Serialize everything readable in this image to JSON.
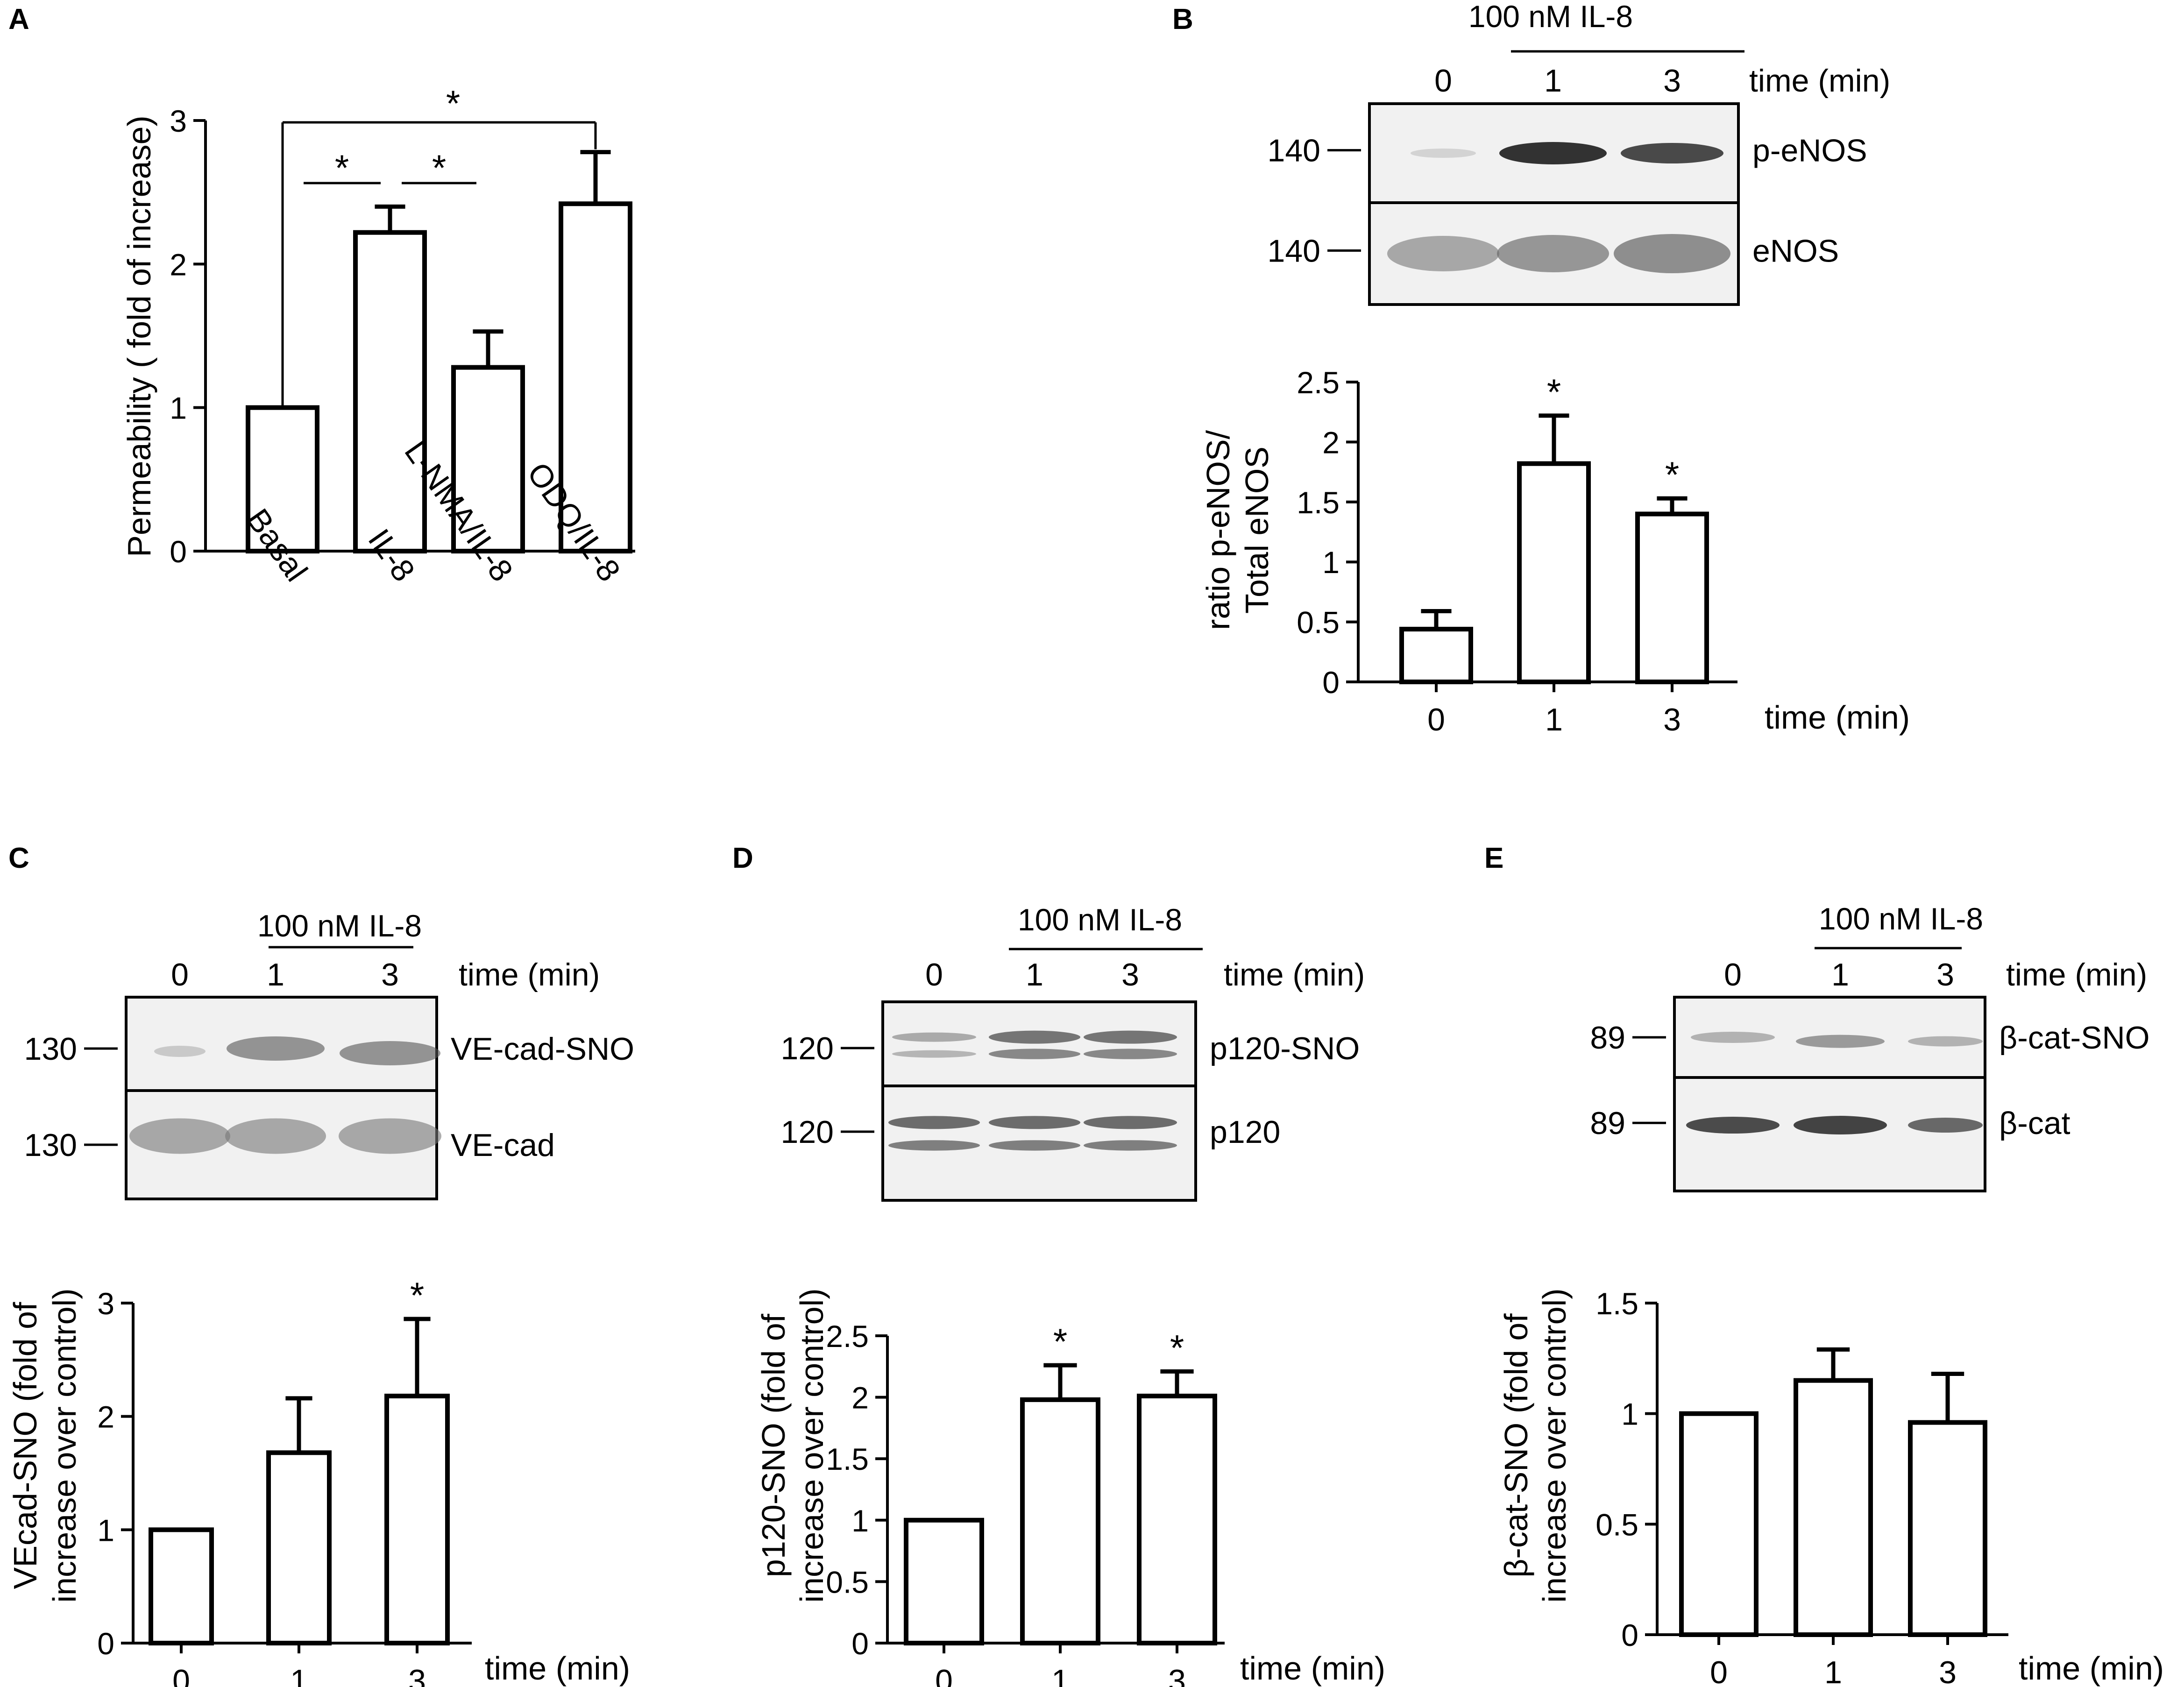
{
  "panels": {
    "A": {
      "letter": "A",
      "ylabel": "Permeability ( fold of increase)",
      "ticks": [
        "0",
        "1",
        "2",
        "3"
      ],
      "cats": [
        "Basal",
        "IL-8",
        "L-NMA/IL-8",
        "ODQ/IL-8"
      ],
      "stars": [
        "*",
        "*",
        "*"
      ]
    },
    "B": {
      "letter": "B",
      "treatment": "100 nM IL-8",
      "lanes": [
        "0",
        "1",
        "3"
      ],
      "time_label": "time (min)",
      "mw": [
        "140",
        "140"
      ],
      "bands": [
        "p-eNOS",
        "eNOS"
      ],
      "ylabel_1": "ratio p-eNOS/",
      "ylabel_2": "Total eNOS",
      "ticks": [
        "0",
        "0.5",
        "1",
        "1.5",
        "2",
        "2.5"
      ],
      "cats": [
        "0",
        "1",
        "3"
      ],
      "stars": [
        "*",
        "*"
      ]
    },
    "C": {
      "letter": "C",
      "treatment": "100 nM IL-8",
      "lanes": [
        "0",
        "1",
        "3"
      ],
      "time_label": "time (min)",
      "mw": [
        "130",
        "130"
      ],
      "bands": [
        "VE-cad-SNO",
        "VE-cad"
      ],
      "ylabel_1": "VEcad-SNO (fold of",
      "ylabel_2": "increase over control)",
      "ticks": [
        "0",
        "1",
        "2",
        "3"
      ],
      "cats": [
        "0",
        "1",
        "3"
      ],
      "stars": [
        "*"
      ]
    },
    "D": {
      "letter": "D",
      "treatment": "100 nM IL-8",
      "lanes": [
        "0",
        "1",
        "3"
      ],
      "time_label": "time (min)",
      "mw": [
        "120",
        "120"
      ],
      "bands": [
        "p120-SNO",
        "p120"
      ],
      "ylabel_1": "p120-SNO (fold of",
      "ylabel_2": "increase over control)",
      "ticks": [
        "0",
        "0.5",
        "1",
        "1.5",
        "2",
        "2.5"
      ],
      "cats": [
        "0",
        "1",
        "3"
      ],
      "stars": [
        "*",
        "*"
      ]
    },
    "E": {
      "letter": "E",
      "treatment": "100 nM IL-8",
      "lanes": [
        "0",
        "1",
        "3"
      ],
      "time_label": "time (min)",
      "mw": [
        "89",
        "89"
      ],
      "bands": [
        "β-cat-SNO",
        "β-cat"
      ],
      "ylabel_1": "β-cat-SNO (fold of",
      "ylabel_2": "increase over control)",
      "ticks": [
        "0",
        "0.5",
        "1",
        "1.5"
      ],
      "cats": [
        "0",
        "1",
        "3"
      ],
      "stars": []
    }
  },
  "chart_data": [
    {
      "panel": "A",
      "type": "bar",
      "categories": [
        "Basal",
        "IL-8",
        "L-NMA/IL-8",
        "ODQ/IL-8"
      ],
      "values": [
        1.0,
        2.22,
        1.28,
        2.42
      ],
      "errors": [
        0,
        0.18,
        0.25,
        0.36
      ],
      "ylabel": "Permeability ( fold of increase)",
      "ylim": [
        0,
        3
      ],
      "significance": [
        [
          "Basal",
          "ODQ/IL-8"
        ],
        [
          "Basal",
          "IL-8"
        ],
        [
          "IL-8",
          "L-NMA/IL-8"
        ]
      ]
    },
    {
      "panel": "B",
      "type": "bar",
      "categories": [
        "0",
        "1",
        "3"
      ],
      "values": [
        0.44,
        1.82,
        1.4
      ],
      "errors": [
        0.15,
        0.4,
        0.13
      ],
      "xlabel": "time (min)",
      "ylabel": "ratio p-eNOS/ Total eNOS",
      "ylim": [
        0,
        2.5
      ],
      "significant": [
        "1",
        "3"
      ]
    },
    {
      "panel": "C",
      "type": "bar",
      "categories": [
        "0",
        "1",
        "3"
      ],
      "values": [
        1.0,
        1.68,
        2.18
      ],
      "errors": [
        0,
        0.48,
        0.68
      ],
      "xlabel": "time (min)",
      "ylabel": "VEcad-SNO (fold of increase over control)",
      "ylim": [
        0,
        3
      ],
      "significant": [
        "3"
      ]
    },
    {
      "panel": "D",
      "type": "bar",
      "categories": [
        "0",
        "1",
        "3"
      ],
      "values": [
        1.0,
        1.98,
        2.01
      ],
      "errors": [
        0,
        0.28,
        0.2
      ],
      "xlabel": "time (min)",
      "ylabel": "p120-SNO (fold of increase over control)",
      "ylim": [
        0,
        2.5
      ],
      "significant": [
        "1",
        "3"
      ]
    },
    {
      "panel": "E",
      "type": "bar",
      "categories": [
        "0",
        "1",
        "3"
      ],
      "values": [
        1.0,
        1.15,
        0.96
      ],
      "errors": [
        0,
        0.14,
        0.22
      ],
      "xlabel": "time (min)",
      "ylabel": "β-cat-SNO (fold of increase over control)",
      "ylim": [
        0,
        1.5
      ],
      "significant": []
    }
  ]
}
